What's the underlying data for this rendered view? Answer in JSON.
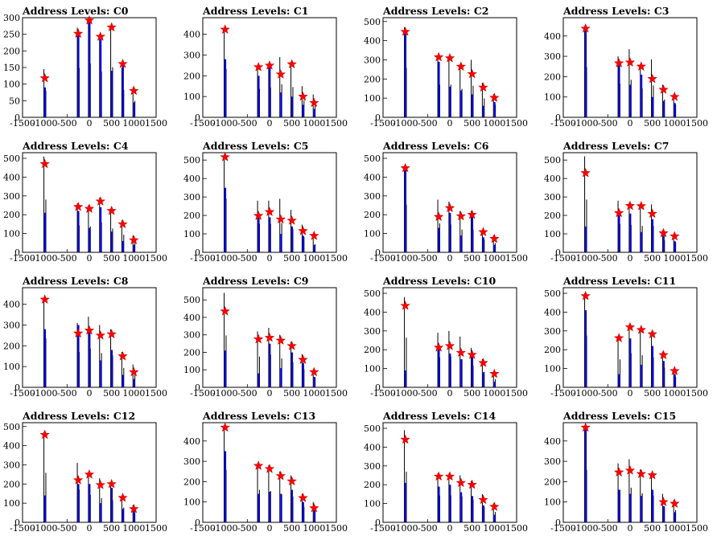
{
  "chart_data": [
    {
      "title": "Address Levels: C0",
      "type": "histogram-with-markers",
      "xlim": [
        -1500,
        1500
      ],
      "xticks": [
        -1500,
        -1000,
        -500,
        0,
        500,
        1000,
        1500
      ],
      "ylim": [
        0,
        300
      ],
      "yticks": [
        0,
        50,
        100,
        150,
        200,
        250,
        300
      ],
      "peaks": {
        "x": [
          -1000,
          -250,
          0,
          250,
          500,
          750,
          1000
        ],
        "blue": [
          90,
          250,
          290,
          235,
          140,
          155,
          45
        ],
        "black": [
          145,
          270,
          295,
          250,
          275,
          150,
          90
        ],
        "markers": [
          118,
          252,
          292,
          243,
          271,
          161,
          80
        ]
      }
    },
    {
      "title": "Address Levels: C1",
      "type": "histogram-with-markers",
      "xlim": [
        -1500,
        1500
      ],
      "xticks": [
        -1500,
        -1000,
        -500,
        0,
        500,
        1000,
        1500
      ],
      "ylim": [
        0,
        480
      ],
      "yticks": [
        0,
        100,
        200,
        300,
        400
      ],
      "peaks": {
        "x": [
          -1000,
          -250,
          0,
          250,
          500,
          750,
          1000
        ],
        "blue": [
          280,
          200,
          240,
          120,
          100,
          60,
          40
        ],
        "black": [
          425,
          250,
          260,
          290,
          265,
          150,
          110
        ],
        "markers": [
          423,
          242,
          250,
          207,
          256,
          100,
          70
        ]
      }
    },
    {
      "title": "Address Levels: C2",
      "type": "histogram-with-markers",
      "xlim": [
        -1500,
        1500
      ],
      "xticks": [
        -1500,
        -1000,
        -500,
        0,
        500,
        1000,
        1500
      ],
      "ylim": [
        0,
        520
      ],
      "yticks": [
        0,
        100,
        200,
        300,
        400,
        500
      ],
      "peaks": {
        "x": [
          -1000,
          -250,
          0,
          250,
          500,
          750,
          1000
        ],
        "blue": [
          460,
          290,
          160,
          140,
          120,
          60,
          80
        ],
        "black": [
          470,
          310,
          310,
          270,
          300,
          180,
          120
        ],
        "markers": [
          447,
          314,
          309,
          265,
          226,
          156,
          102
        ]
      }
    },
    {
      "title": "Address Levels: C3",
      "type": "histogram-with-markers",
      "xlim": [
        -1500,
        1500
      ],
      "xticks": [
        -1500,
        -1000,
        -500,
        0,
        500,
        1000,
        1500
      ],
      "ylim": [
        0,
        490
      ],
      "yticks": [
        0,
        100,
        200,
        300,
        400
      ],
      "peaks": {
        "x": [
          -1000,
          -250,
          0,
          250,
          500,
          750,
          1000
        ],
        "blue": [
          440,
          260,
          160,
          210,
          100,
          80,
          70
        ],
        "black": [
          450,
          300,
          335,
          260,
          285,
          160,
          115
        ],
        "markers": [
          437,
          266,
          270,
          250,
          189,
          136,
          101
        ]
      }
    },
    {
      "title": "Address Levels: C4",
      "type": "histogram-with-markers",
      "xlim": [
        -1500,
        1500
      ],
      "xticks": [
        -1500,
        -1000,
        -500,
        0,
        500,
        1000,
        1500
      ],
      "ylim": [
        0,
        530
      ],
      "yticks": [
        0,
        100,
        200,
        300,
        400,
        500
      ],
      "peaks": {
        "x": [
          -1000,
          -250,
          0,
          250,
          500,
          750,
          1000
        ],
        "blue": [
          210,
          220,
          130,
          240,
          110,
          60,
          40
        ],
        "black": [
          510,
          260,
          250,
          290,
          230,
          170,
          90
        ],
        "markers": [
          470,
          242,
          232,
          271,
          221,
          150,
          65
        ]
      }
    },
    {
      "title": "Address Levels: C5",
      "type": "histogram-with-markers",
      "xlim": [
        -1500,
        1500
      ],
      "xticks": [
        -1500,
        -1000,
        -500,
        0,
        500,
        1000,
        1500
      ],
      "ylim": [
        0,
        540
      ],
      "yticks": [
        0,
        100,
        200,
        300,
        400,
        500
      ],
      "peaks": {
        "x": [
          -1000,
          -250,
          0,
          250,
          500,
          750,
          1000
        ],
        "blue": [
          350,
          190,
          190,
          100,
          140,
          90,
          40
        ],
        "black": [
          530,
          280,
          280,
          290,
          230,
          150,
          80
        ],
        "markers": [
          516,
          198,
          219,
          179,
          172,
          116,
          90
        ]
      }
    },
    {
      "title": "Address Levels: C6",
      "type": "histogram-with-markers",
      "xlim": [
        -1500,
        1500
      ],
      "xticks": [
        -1500,
        -1000,
        -500,
        0,
        500,
        1000,
        1500
      ],
      "ylim": [
        0,
        530
      ],
      "yticks": [
        0,
        100,
        200,
        300,
        400,
        500
      ],
      "peaks": {
        "x": [
          -1000,
          -250,
          0,
          250,
          500,
          750,
          1000
        ],
        "blue": [
          440,
          130,
          210,
          90,
          190,
          80,
          40
        ],
        "black": [
          460,
          280,
          270,
          220,
          220,
          120,
          90
        ],
        "markers": [
          448,
          189,
          236,
          192,
          200,
          108,
          72
        ]
      }
    },
    {
      "title": "Address Levels: C7",
      "type": "histogram-with-markers",
      "xlim": [
        -1500,
        1500
      ],
      "xticks": [
        -1500,
        -1000,
        -500,
        0,
        500,
        1000,
        1500
      ],
      "ylim": [
        0,
        540
      ],
      "yticks": [
        0,
        100,
        200,
        300,
        400,
        500
      ],
      "peaks": {
        "x": [
          -1000,
          -250,
          0,
          250,
          500,
          750,
          1000
        ],
        "blue": [
          140,
          200,
          210,
          110,
          180,
          90,
          60
        ],
        "black": [
          520,
          280,
          270,
          260,
          260,
          120,
          100
        ],
        "markers": [
          430,
          213,
          252,
          251,
          209,
          104,
          87
        ]
      }
    },
    {
      "title": "Address Levels: C8",
      "type": "histogram-with-markers",
      "xlim": [
        -1500,
        1500
      ],
      "xticks": [
        -1500,
        -1000,
        -500,
        0,
        500,
        1000,
        1500
      ],
      "ylim": [
        0,
        480
      ],
      "yticks": [
        0,
        100,
        200,
        300,
        400
      ],
      "peaks": {
        "x": [
          -1000,
          -250,
          0,
          250,
          500,
          750,
          1000
        ],
        "blue": [
          280,
          300,
          270,
          130,
          180,
          60,
          40
        ],
        "black": [
          430,
          310,
          340,
          300,
          280,
          170,
          110
        ],
        "markers": [
          423,
          260,
          274,
          250,
          256,
          150,
          73
        ]
      }
    },
    {
      "title": "Address Levels: C9",
      "type": "histogram-with-markers",
      "xlim": [
        -1500,
        1500
      ],
      "xticks": [
        -1500,
        -1000,
        -500,
        0,
        500,
        1000,
        1500
      ],
      "ylim": [
        0,
        570
      ],
      "yticks": [
        0,
        100,
        200,
        300,
        400,
        500
      ],
      "peaks": {
        "x": [
          -1000,
          -250,
          0,
          250,
          500,
          750,
          1000
        ],
        "blue": [
          210,
          80,
          250,
          110,
          200,
          140,
          60
        ],
        "black": [
          540,
          320,
          340,
          300,
          260,
          190,
          100
        ],
        "markers": [
          435,
          275,
          284,
          268,
          237,
          158,
          87
        ]
      }
    },
    {
      "title": "Address Levels: C10",
      "type": "histogram-with-markers",
      "xlim": [
        -1500,
        1500
      ],
      "xticks": [
        -1500,
        -1000,
        -500,
        0,
        500,
        1000,
        1500
      ],
      "ylim": [
        0,
        530
      ],
      "yticks": [
        0,
        100,
        200,
        300,
        400,
        500
      ],
      "peaks": {
        "x": [
          -1000,
          -250,
          0,
          250,
          500,
          750,
          1000
        ],
        "blue": [
          90,
          220,
          180,
          150,
          170,
          80,
          30
        ],
        "black": [
          480,
          290,
          300,
          270,
          210,
          150,
          80
        ],
        "markers": [
          434,
          212,
          220,
          184,
          173,
          130,
          72
        ]
      }
    },
    {
      "title": "Address Levels: C11",
      "type": "histogram-with-markers",
      "xlim": [
        -1500,
        1500
      ],
      "xticks": [
        -1500,
        -1000,
        -500,
        0,
        500,
        1000,
        1500
      ],
      "ylim": [
        0,
        530
      ],
      "yticks": [
        0,
        100,
        200,
        300,
        400,
        500
      ],
      "peaks": {
        "x": [
          -1000,
          -250,
          0,
          250,
          500,
          750,
          1000
        ],
        "blue": [
          410,
          70,
          260,
          120,
          220,
          140,
          70
        ],
        "black": [
          500,
          270,
          330,
          310,
          290,
          190,
          100
        ],
        "markers": [
          486,
          262,
          320,
          306,
          283,
          172,
          87
        ]
      }
    },
    {
      "title": "Address Levels: C12",
      "type": "histogram-with-markers",
      "xlim": [
        -1500,
        1500
      ],
      "xticks": [
        -1500,
        -1000,
        -500,
        0,
        500,
        1000,
        1500
      ],
      "ylim": [
        0,
        520
      ],
      "yticks": [
        0,
        100,
        200,
        300,
        400,
        500
      ],
      "peaks": {
        "x": [
          -1000,
          -250,
          0,
          250,
          500,
          750,
          1000
        ],
        "blue": [
          140,
          200,
          200,
          100,
          180,
          70,
          60
        ],
        "black": [
          470,
          310,
          260,
          230,
          210,
          140,
          90
        ],
        "markers": [
          457,
          220,
          250,
          195,
          200,
          128,
          70
        ]
      }
    },
    {
      "title": "Address Levels: C13",
      "type": "histogram-with-markers",
      "xlim": [
        -1500,
        1500
      ],
      "xticks": [
        -1500,
        -1000,
        -500,
        0,
        500,
        1000,
        1500
      ],
      "ylim": [
        0,
        490
      ],
      "yticks": [
        0,
        100,
        200,
        300,
        400
      ],
      "peaks": {
        "x": [
          -1000,
          -250,
          0,
          250,
          500,
          750,
          1000
        ],
        "blue": [
          350,
          140,
          150,
          140,
          160,
          100,
          60
        ],
        "black": [
          470,
          290,
          280,
          250,
          230,
          140,
          100
        ],
        "markers": [
          466,
          278,
          263,
          228,
          202,
          120,
          70
        ]
      }
    },
    {
      "title": "Address Levels: C14",
      "type": "histogram-with-markers",
      "xlim": [
        -1500,
        1500
      ],
      "xticks": [
        -1500,
        -1000,
        -500,
        0,
        500,
        1000,
        1500
      ],
      "ylim": [
        0,
        530
      ],
      "yticks": [
        0,
        100,
        200,
        300,
        400,
        500
      ],
      "peaks": {
        "x": [
          -1000,
          -250,
          0,
          250,
          500,
          750,
          1000
        ],
        "blue": [
          210,
          190,
          200,
          160,
          140,
          90,
          40
        ],
        "black": [
          490,
          260,
          260,
          250,
          220,
          150,
          100
        ],
        "markers": [
          440,
          244,
          244,
          210,
          200,
          120,
          83
        ]
      }
    },
    {
      "title": "Address Levels: C15",
      "type": "histogram-with-markers",
      "xlim": [
        -1500,
        1500
      ],
      "xticks": [
        -1500,
        -1000,
        -500,
        0,
        500,
        1000,
        1500
      ],
      "ylim": [
        0,
        490
      ],
      "yticks": [
        0,
        100,
        200,
        300,
        400
      ],
      "peaks": {
        "x": [
          -1000,
          -250,
          0,
          250,
          500,
          750,
          1000
        ],
        "blue": [
          460,
          160,
          140,
          130,
          160,
          80,
          50
        ],
        "black": [
          470,
          290,
          310,
          260,
          240,
          140,
          110
        ],
        "markers": [
          466,
          246,
          255,
          238,
          232,
          100,
          92
        ]
      }
    }
  ],
  "colors": {
    "blue_bars": "#0000ee",
    "black_bars": "#000000",
    "markers": "#ff0000"
  }
}
